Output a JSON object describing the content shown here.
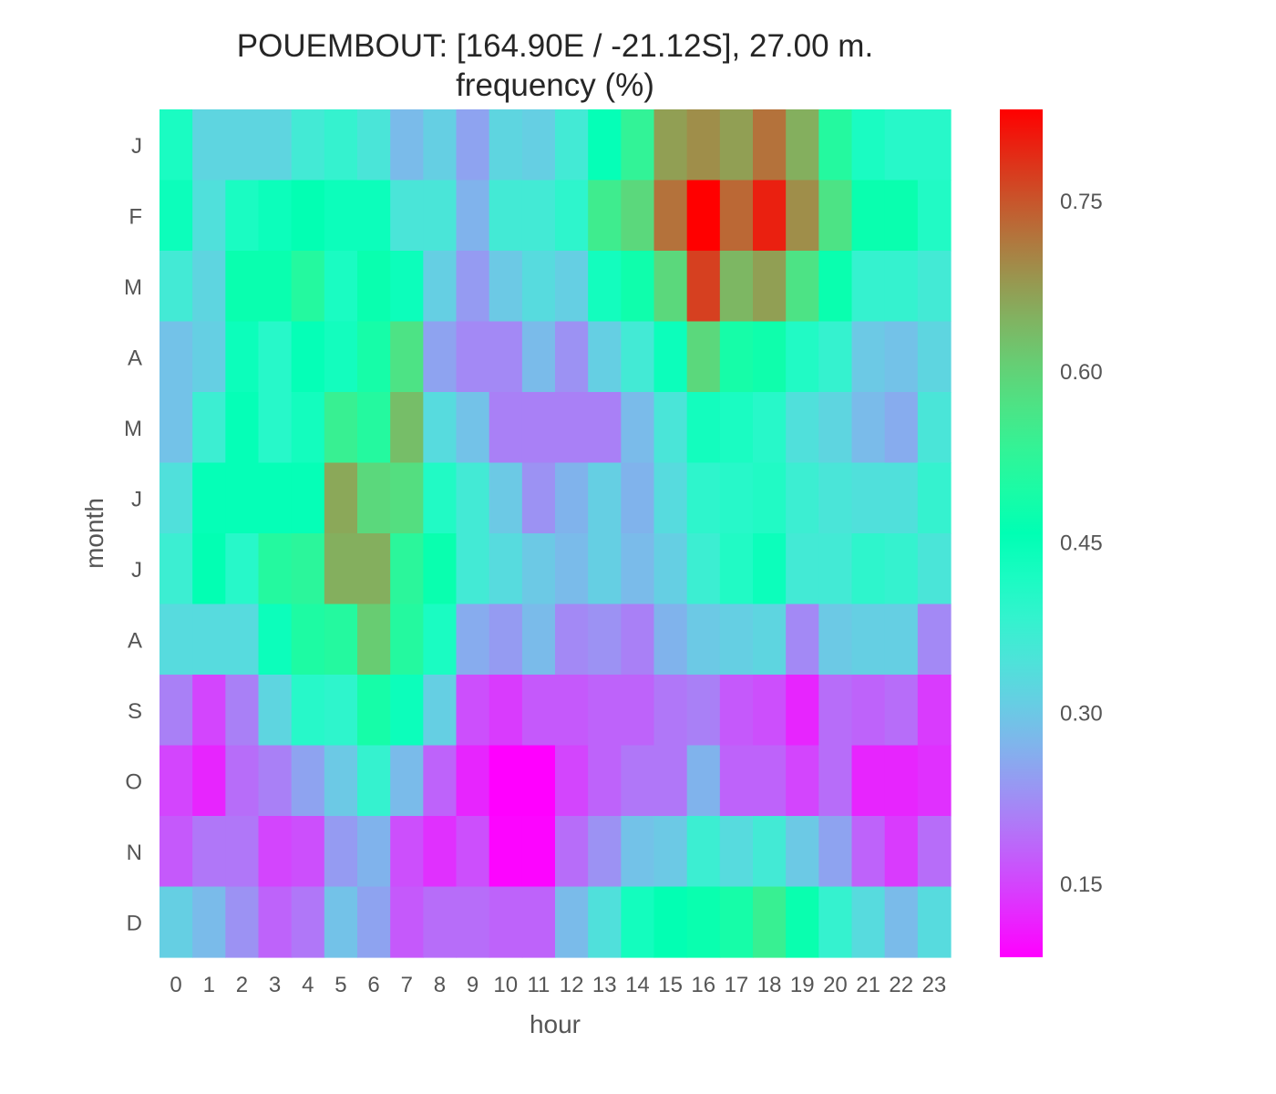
{
  "chart_data": {
    "type": "heatmap",
    "title": "POUEMBOUT: [164.90E / -21.12S], 27.00 m.",
    "subtitle": "frequency (%)",
    "xlabel": "hour",
    "ylabel": "month",
    "x_categories": [
      "0",
      "1",
      "2",
      "3",
      "4",
      "5",
      "6",
      "7",
      "8",
      "9",
      "10",
      "11",
      "12",
      "13",
      "14",
      "15",
      "16",
      "17",
      "18",
      "19",
      "20",
      "21",
      "22",
      "23"
    ],
    "y_categories": [
      "J",
      "F",
      "M",
      "A",
      "M",
      "J",
      "J",
      "A",
      "S",
      "O",
      "N",
      "D"
    ],
    "colorscale": "rainbow",
    "vmin": 0.085,
    "vmax": 0.83,
    "colorbar_ticks": [
      0.15,
      0.3,
      0.45,
      0.6,
      0.75
    ],
    "colorbar_tick_labels": [
      "0.15",
      "0.30",
      "0.45",
      "0.60",
      "0.75"
    ],
    "values": [
      [
        0.42,
        0.32,
        0.32,
        0.32,
        0.36,
        0.38,
        0.35,
        0.28,
        0.31,
        0.25,
        0.32,
        0.31,
        0.36,
        0.45,
        0.53,
        0.67,
        0.69,
        0.67,
        0.72,
        0.65,
        0.51,
        0.42,
        0.4,
        0.4
      ],
      [
        0.44,
        0.34,
        0.42,
        0.44,
        0.46,
        0.44,
        0.44,
        0.35,
        0.35,
        0.27,
        0.36,
        0.36,
        0.39,
        0.55,
        0.59,
        0.72,
        0.83,
        0.73,
        0.8,
        0.69,
        0.57,
        0.47,
        0.47,
        0.41
      ],
      [
        0.36,
        0.32,
        0.47,
        0.47,
        0.51,
        0.42,
        0.47,
        0.44,
        0.31,
        0.24,
        0.3,
        0.33,
        0.31,
        0.43,
        0.48,
        0.59,
        0.77,
        0.64,
        0.67,
        0.57,
        0.47,
        0.38,
        0.38,
        0.36
      ],
      [
        0.29,
        0.31,
        0.44,
        0.4,
        0.45,
        0.43,
        0.49,
        0.57,
        0.25,
        0.22,
        0.22,
        0.28,
        0.23,
        0.31,
        0.36,
        0.44,
        0.59,
        0.49,
        0.48,
        0.41,
        0.38,
        0.3,
        0.29,
        0.32
      ],
      [
        0.29,
        0.37,
        0.45,
        0.4,
        0.43,
        0.54,
        0.51,
        0.63,
        0.33,
        0.29,
        0.21,
        0.21,
        0.21,
        0.21,
        0.28,
        0.35,
        0.43,
        0.42,
        0.4,
        0.34,
        0.32,
        0.28,
        0.26,
        0.35
      ],
      [
        0.34,
        0.45,
        0.45,
        0.45,
        0.45,
        0.66,
        0.59,
        0.58,
        0.41,
        0.36,
        0.3,
        0.23,
        0.27,
        0.31,
        0.27,
        0.33,
        0.39,
        0.4,
        0.41,
        0.37,
        0.35,
        0.34,
        0.34,
        0.38
      ],
      [
        0.37,
        0.46,
        0.4,
        0.51,
        0.52,
        0.65,
        0.65,
        0.52,
        0.47,
        0.36,
        0.33,
        0.3,
        0.28,
        0.31,
        0.28,
        0.31,
        0.37,
        0.41,
        0.44,
        0.36,
        0.36,
        0.39,
        0.38,
        0.35
      ],
      [
        0.33,
        0.33,
        0.33,
        0.44,
        0.5,
        0.51,
        0.61,
        0.51,
        0.42,
        0.26,
        0.24,
        0.28,
        0.22,
        0.23,
        0.21,
        0.27,
        0.3,
        0.31,
        0.32,
        0.22,
        0.3,
        0.31,
        0.31,
        0.22
      ],
      [
        0.21,
        0.15,
        0.21,
        0.32,
        0.4,
        0.39,
        0.49,
        0.44,
        0.31,
        0.16,
        0.14,
        0.17,
        0.17,
        0.18,
        0.18,
        0.2,
        0.21,
        0.17,
        0.16,
        0.12,
        0.19,
        0.18,
        0.19,
        0.14
      ],
      [
        0.15,
        0.12,
        0.19,
        0.21,
        0.25,
        0.3,
        0.38,
        0.28,
        0.18,
        0.12,
        0.085,
        0.085,
        0.15,
        0.18,
        0.2,
        0.2,
        0.27,
        0.18,
        0.18,
        0.15,
        0.19,
        0.12,
        0.12,
        0.13
      ],
      [
        0.17,
        0.2,
        0.2,
        0.15,
        0.16,
        0.24,
        0.27,
        0.16,
        0.13,
        0.16,
        0.09,
        0.09,
        0.19,
        0.23,
        0.29,
        0.3,
        0.37,
        0.33,
        0.36,
        0.3,
        0.25,
        0.18,
        0.14,
        0.19
      ],
      [
        0.31,
        0.28,
        0.23,
        0.18,
        0.2,
        0.29,
        0.25,
        0.17,
        0.19,
        0.19,
        0.18,
        0.18,
        0.28,
        0.34,
        0.43,
        0.46,
        0.47,
        0.49,
        0.54,
        0.47,
        0.38,
        0.33,
        0.28,
        0.33
      ]
    ]
  }
}
